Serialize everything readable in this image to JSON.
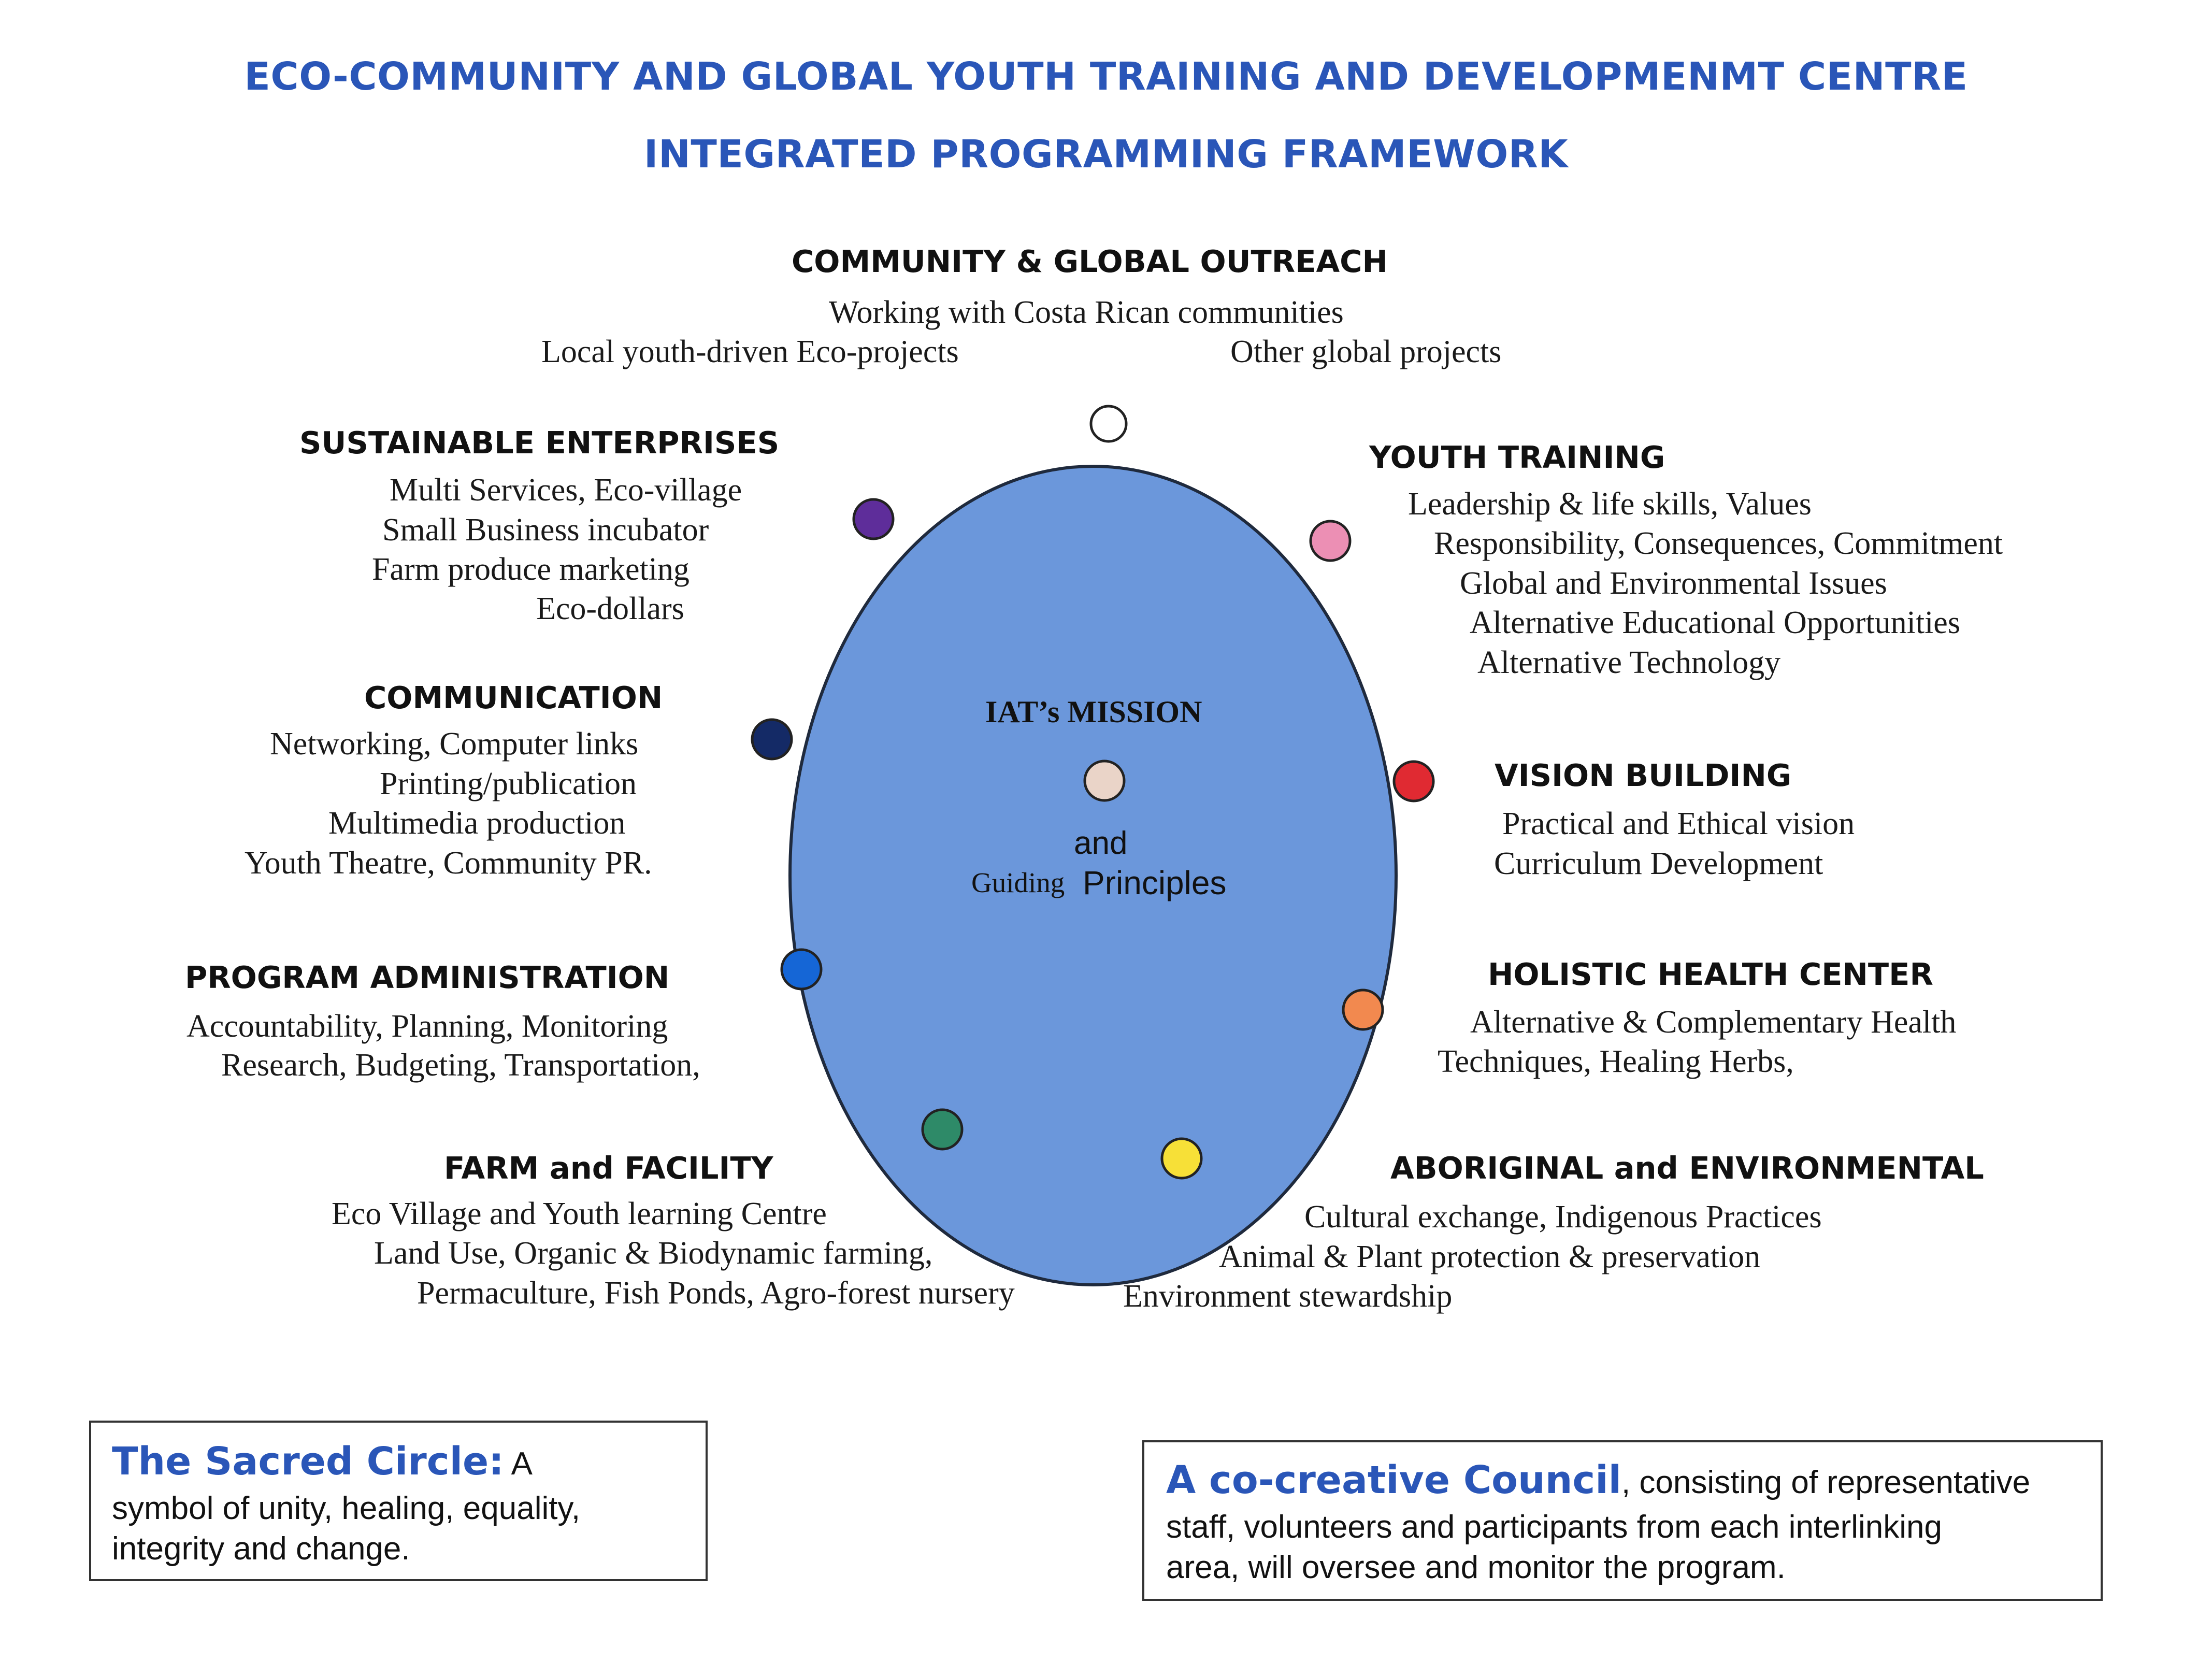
{
  "title": {
    "line1": "ECO-COMMUNITY AND GLOBAL YOUTH TRAINING AND DEVELOPMENMT CENTRE",
    "line2": "INTEGRATED PROGRAMMING FRAMEWORK"
  },
  "center": {
    "mission": "IAT’s MISSION",
    "and": "and",
    "guiding": "Guiding",
    "principles": "Principles"
  },
  "sections": {
    "outreach": {
      "heading": "COMMUNITY & GLOBAL OUTREACH",
      "items": [
        "Working with Costa Rican communities",
        "Local youth-driven Eco-projects",
        "Other global projects"
      ]
    },
    "enterprises": {
      "heading": "SUSTAINABLE ENTERPRISES",
      "items": [
        "Multi Services, Eco-village",
        "Small Business incubator",
        "Farm produce marketing",
        "Eco-dollars"
      ]
    },
    "communication": {
      "heading": "COMMUNICATION",
      "items": [
        "Networking, Computer links",
        "Printing/publication",
        "Multimedia production",
        "Youth Theatre, Community PR."
      ]
    },
    "administration": {
      "heading": "PROGRAM ADMINISTRATION",
      "items": [
        "Accountability, Planning, Monitoring",
        "Research, Budgeting, Transportation,"
      ]
    },
    "farm": {
      "heading": "FARM and FACILITY",
      "items": [
        "Eco Village and Youth learning Centre",
        "Land Use, Organic & Biodynamic farming,",
        "Permaculture, Fish Ponds, Agro-forest nursery"
      ]
    },
    "youth": {
      "heading": "YOUTH TRAINING",
      "items": [
        "Leadership & life skills, Values",
        "Responsibility, Consequences, Commitment",
        "Global and Environmental Issues",
        "Alternative Educational Opportunities",
        "Alternative Technology"
      ]
    },
    "vision": {
      "heading": "VISION BUILDING",
      "items": [
        "Practical and Ethical vision",
        "Curriculum Development"
      ]
    },
    "health": {
      "heading": "HOLISTIC HEALTH CENTER",
      "items": [
        "Alternative & Complementary Health",
        "Techniques, Healing Herbs,"
      ]
    },
    "aboriginal": {
      "heading": "ABORIGINAL and ENVIRONMENTAL",
      "items": [
        "Cultural exchange, Indigenous Practices",
        "Animal & Plant protection & preservation",
        "Environment stewardship"
      ]
    }
  },
  "boxes": {
    "sacred": {
      "strong": "The Sacred Circle:",
      "line1_rest": " A",
      "line2": "symbol of unity, healing, equality,",
      "line3": "integrity and change."
    },
    "council": {
      "strong": "A co-creative Council",
      "line1_rest": ", consisting of representative",
      "line2": "staff, volunteers and participants from each interlinking",
      "line3": "area, will oversee and monitor the program."
    }
  },
  "colors": {
    "circle_fill": "#6b97db",
    "title_blue": "#2a56b8",
    "dot_top": "#ffffff",
    "dot_pink": "#ec8fb4",
    "dot_red": "#e02a32",
    "dot_orange": "#f2894f",
    "dot_yellow": "#f7e037",
    "dot_green": "#2e8a68",
    "dot_blue": "#1566d6",
    "dot_navy": "#142a66",
    "dot_purple": "#5e2d9a",
    "dot_center": "#ead4c8"
  }
}
